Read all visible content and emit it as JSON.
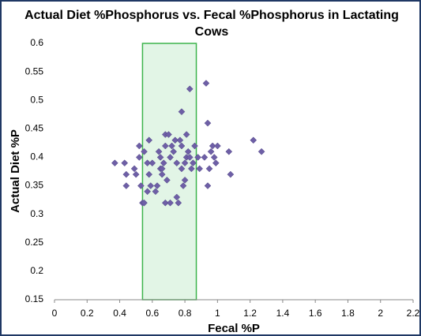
{
  "chart_data": {
    "type": "scatter",
    "title": "Actual Diet %Phosphorus vs. Fecal %Phosphorus in Lactating Cows",
    "x_label": "Fecal %P",
    "y_label": "Actual Diet %P",
    "xlim": [
      0,
      2.2
    ],
    "xticks": [
      0,
      0.2,
      0.4,
      0.6,
      0.8,
      1,
      1.2,
      1.4,
      1.6,
      1.8,
      2,
      2.2
    ],
    "ylim": [
      0.15,
      0.6
    ],
    "yticks": [
      0.15,
      0.2,
      0.25,
      0.3,
      0.35,
      0.4,
      0.45,
      0.5,
      0.55,
      0.6
    ],
    "grid": false,
    "highlight_x": [
      0.54,
      0.87
    ],
    "highlight_color": "#e2f5e6",
    "highlight_edge": "#3cb44b",
    "series": [
      {
        "color": "#6e5fa6",
        "x": [
          0.37,
          0.43,
          0.44,
          0.44,
          0.49,
          0.5,
          0.52,
          0.52,
          0.53,
          0.54,
          0.55,
          0.55,
          0.57,
          0.57,
          0.58,
          0.58,
          0.59,
          0.6,
          0.62,
          0.63,
          0.64,
          0.65,
          0.65,
          0.66,
          0.66,
          0.67,
          0.68,
          0.68,
          0.68,
          0.69,
          0.7,
          0.71,
          0.71,
          0.72,
          0.73,
          0.74,
          0.75,
          0.75,
          0.76,
          0.77,
          0.78,
          0.78,
          0.78,
          0.79,
          0.8,
          0.8,
          0.81,
          0.81,
          0.82,
          0.83,
          0.83,
          0.84,
          0.85,
          0.86,
          0.88,
          0.89,
          0.92,
          0.93,
          0.94,
          0.94,
          0.95,
          0.96,
          0.97,
          0.98,
          0.99,
          1.0,
          1.07,
          1.08,
          1.22,
          1.27
        ],
        "values": [
          0.39,
          0.39,
          0.37,
          0.35,
          0.38,
          0.37,
          0.4,
          0.42,
          0.35,
          0.32,
          0.32,
          0.41,
          0.39,
          0.34,
          0.43,
          0.37,
          0.35,
          0.39,
          0.34,
          0.35,
          0.41,
          0.38,
          0.4,
          0.37,
          0.38,
          0.39,
          0.42,
          0.32,
          0.44,
          0.36,
          0.44,
          0.4,
          0.32,
          0.42,
          0.41,
          0.43,
          0.33,
          0.39,
          0.32,
          0.43,
          0.48,
          0.42,
          0.38,
          0.35,
          0.39,
          0.36,
          0.44,
          0.4,
          0.41,
          0.4,
          0.52,
          0.38,
          0.39,
          0.42,
          0.4,
          0.38,
          0.4,
          0.53,
          0.46,
          0.35,
          0.38,
          0.41,
          0.42,
          0.4,
          0.39,
          0.42,
          0.41,
          0.37,
          0.43,
          0.41
        ]
      }
    ]
  }
}
